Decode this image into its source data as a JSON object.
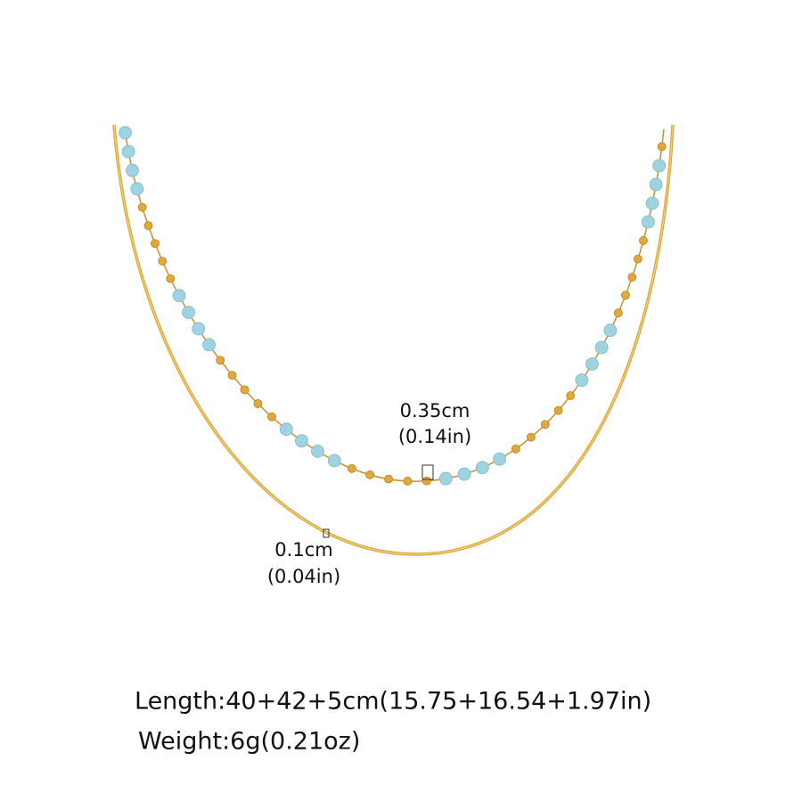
{
  "annotations": {
    "bead_size": {
      "metric": "0.35cm",
      "imperial": "(0.14in)"
    },
    "chain_size": {
      "metric": "0.1cm",
      "imperial": "(0.04in)"
    }
  },
  "specs": {
    "length": "Length:40+42+5cm(15.75+16.54+1.97in)",
    "weight": "Weight:6g(0.21oz)"
  }
}
